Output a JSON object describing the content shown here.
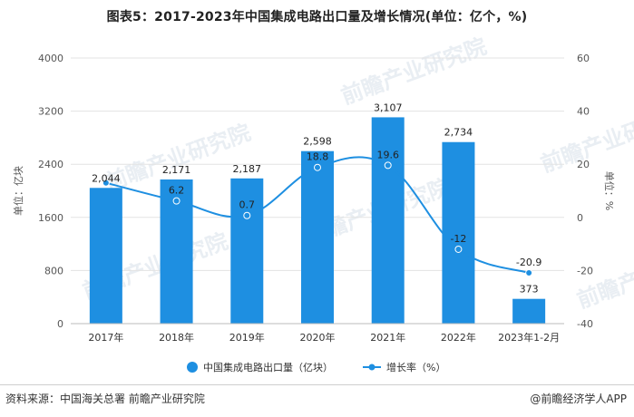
{
  "header": {
    "title": "图表5：2017-2023年中国集成电路出口量及增长情况(单位：亿个，%)"
  },
  "footer": {
    "source": "资料来源：中国海关总署 前瞻产业研究院",
    "brand": "@前瞻经济学人APP"
  },
  "watermark": {
    "text": "前瞻产业研究院"
  },
  "colors": {
    "bar": "#1e8fe1",
    "line": "#1e8fe1",
    "grid": "#e3e3e3",
    "text": "#555555"
  },
  "chart_data": {
    "type": "bar+line",
    "categories": [
      "2017年",
      "2018年",
      "2019年",
      "2020年",
      "2021年",
      "2022年",
      "2023年1-2月"
    ],
    "series": [
      {
        "name": "中国集成电路出口量（亿块）",
        "type": "bar",
        "axis": "left",
        "values": [
          2044,
          2171,
          2187,
          2598,
          3107,
          2734,
          373
        ],
        "labels": [
          "2,044",
          "2,171",
          "2,187",
          "2,598",
          "3,107",
          "2,734",
          "373"
        ]
      },
      {
        "name": "增长率（%）",
        "type": "line",
        "axis": "right",
        "values": [
          13.0,
          6.2,
          0.7,
          18.8,
          19.6,
          -12,
          -20.9
        ],
        "labels": [
          "",
          "6.2",
          "0.7",
          "18.8",
          "19.6",
          "-12",
          "-20.9"
        ]
      }
    ],
    "y_left": {
      "label": "单位：亿块",
      "lim": [
        0,
        4000
      ],
      "ticks": [
        "4000",
        "3200",
        "2400",
        "1600",
        "800",
        "0"
      ]
    },
    "y_right": {
      "label": "单位：%",
      "lim": [
        -40,
        60
      ],
      "ticks": [
        "60",
        "40",
        "20",
        "0",
        "-20",
        "-40"
      ]
    },
    "grid": true,
    "legend_position": "bottom"
  }
}
